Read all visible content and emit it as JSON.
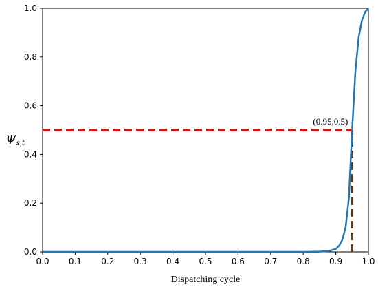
{
  "chart_data": {
    "type": "line",
    "title": "",
    "xlabel": "Dispatching cycle",
    "ylabel": "ψ",
    "ylabel_subscript": "s,t",
    "xlim": [
      0,
      1
    ],
    "ylim": [
      0,
      1
    ],
    "xticks": [
      "0.0",
      "0.1",
      "0.2",
      "0.3",
      "0.4",
      "0.5",
      "0.6",
      "0.7",
      "0.8",
      "0.9",
      "1.0"
    ],
    "yticks": [
      "0.0",
      "0.2",
      "0.4",
      "0.6",
      "0.8",
      "1.0"
    ],
    "grid": false,
    "series": [
      {
        "color": "#1f77b4",
        "x": [
          0,
          0.1,
          0.2,
          0.3,
          0.4,
          0.5,
          0.6,
          0.7,
          0.8,
          0.85,
          0.88,
          0.9,
          0.91,
          0.92,
          0.93,
          0.94,
          0.95,
          0.96,
          0.97,
          0.98,
          0.99,
          1.0
        ],
        "y": [
          0,
          0,
          0,
          0,
          0,
          0,
          0,
          0,
          0.0,
          0.001,
          0.004,
          0.012,
          0.025,
          0.05,
          0.1,
          0.22,
          0.5,
          0.74,
          0.88,
          0.95,
          0.985,
          1.0
        ]
      }
    ],
    "annotations": [
      {
        "text": "(0.95,0.5)",
        "x": 0.95,
        "y": 0.5,
        "color": "#dd1111"
      }
    ],
    "reference_lines": [
      {
        "orientation": "horizontal",
        "x_from": 0,
        "x_to": 0.95,
        "y": 0.5,
        "color": "#dd1111"
      },
      {
        "orientation": "vertical",
        "x": 0.95,
        "y_from": 0,
        "y_to": 0.5,
        "color": "#5b3a1a"
      }
    ]
  }
}
